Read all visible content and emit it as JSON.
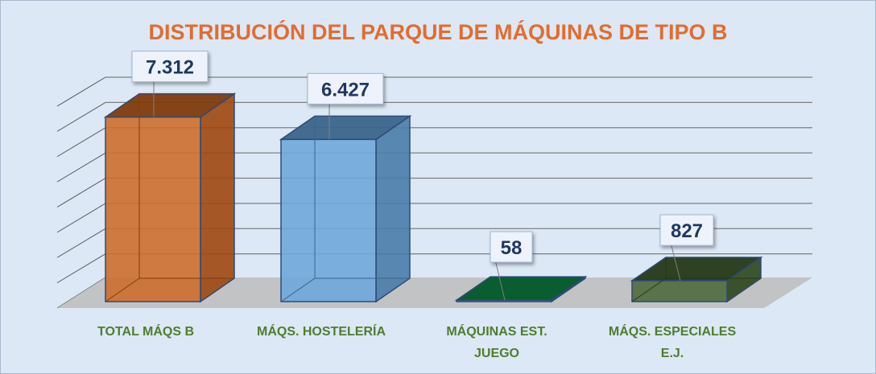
{
  "chart_data": {
    "type": "bar",
    "title": "DISTRIBUCIÓN DEL PARQUE DE MÁQUINAS DE TIPO B",
    "categories": [
      [
        "TOTAL MÁQS B"
      ],
      [
        "MÁQS. HOSTELERÍA"
      ],
      [
        "MÁQUINAS EST.",
        "JUEGO"
      ],
      [
        "MÁQS. ESPECIALES",
        "E.J."
      ]
    ],
    "values": [
      7312,
      6427,
      58,
      827
    ],
    "data_labels": [
      "7.312",
      "6.427",
      "58",
      "827"
    ],
    "colors": [
      "#c55a11",
      "#5b9bd5",
      "#00853f",
      "#375623"
    ],
    "ylim": [
      0,
      8000
    ],
    "grid": true,
    "legend": "none"
  }
}
